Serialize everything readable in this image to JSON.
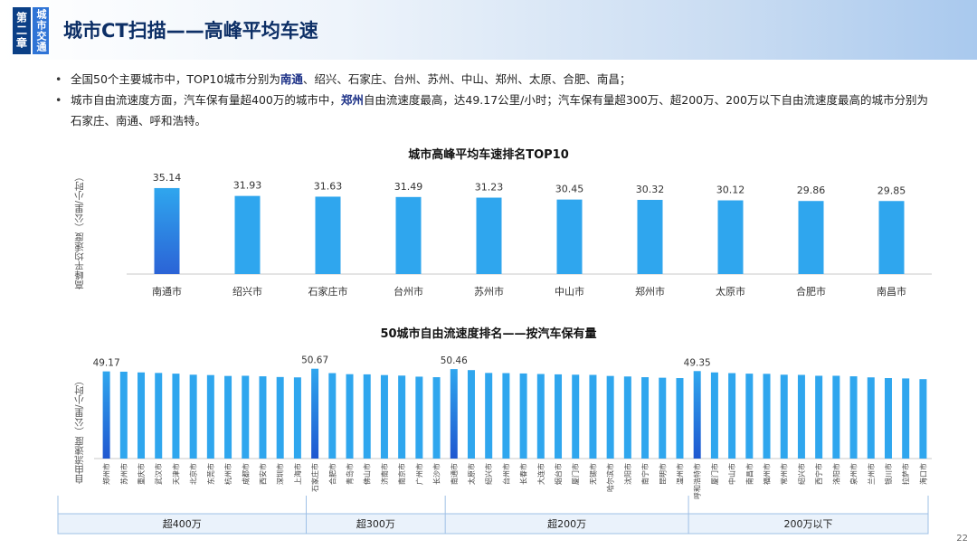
{
  "header": {
    "chapter_label": "第二章",
    "section_label": "城市交通",
    "title": "城市CT扫描——高峰平均车速"
  },
  "bullets": [
    {
      "pre": "全国50个主要城市中，TOP10城市分别为",
      "highlight": "南通",
      "post": "、绍兴、石家庄、台州、苏州、中山、郑州、太原、合肥、南昌；"
    },
    {
      "pre": "城市自由流速度方面，汽车保有量超400万的城市中，",
      "highlight": "郑州",
      "post": "自由流速度最高，达49.17公里/小时；汽车保有量超300万、超200万、200万以下自由流速度最高的城市分别为石家庄、南通、呼和浩特。"
    }
  ],
  "page_number": "22",
  "colors": {
    "bar": "#2fa6ee",
    "bar_highlight": "#1f76d8",
    "bar_gradient_bottom": "#2b63d6",
    "header_dark": "#0b3f86"
  },
  "chart_data": [
    {
      "type": "bar",
      "title": "城市高峰平均车速排名TOP10",
      "ylabel": "高峰平均速度（公里/小时）",
      "categories": [
        "南通市",
        "绍兴市",
        "石家庄市",
        "台州市",
        "苏州市",
        "中山市",
        "郑州市",
        "太原市",
        "合肥市",
        "南昌市"
      ],
      "values": [
        35.14,
        31.93,
        31.63,
        31.49,
        31.23,
        30.45,
        30.32,
        30.12,
        29.86,
        29.85
      ],
      "ylim": [
        0,
        40
      ],
      "data_labels": true,
      "highlight_index": 0
    },
    {
      "type": "bar",
      "title": "50城市自由流速度排名——按汽车保有量",
      "ylabel": "自由流速度（公里/小时）",
      "categories": [
        "郑州市",
        "苏州市",
        "重庆市",
        "武汉市",
        "天津市",
        "北京市",
        "东莞市",
        "杭州市",
        "成都市",
        "西安市",
        "深圳市",
        "上海市",
        "石家庄市",
        "合肥市",
        "青岛市",
        "佛山市",
        "济南市",
        "南京市",
        "广州市",
        "长沙市",
        "南通市",
        "太原市",
        "绍兴市",
        "台州市",
        "长春市",
        "大连市",
        "烟台市",
        "厦门市",
        "无锡市",
        "哈尔滨市",
        "沈阳市",
        "南宁市",
        "昆明市",
        "温州市",
        "呼和浩特市",
        "厦门市",
        "中山市",
        "南昌市",
        "福州市",
        "常州市",
        "绍兴市",
        "西宁市",
        "洛阳市",
        "泉州市",
        "兰州市",
        "银川市",
        "拉萨市",
        "海口市"
      ],
      "values": [
        49.17,
        49.0,
        48.6,
        48.3,
        47.9,
        47.3,
        47.1,
        46.6,
        46.7,
        46.4,
        46.0,
        45.8,
        50.67,
        48.2,
        47.6,
        47.5,
        47.1,
        46.8,
        46.2,
        45.9,
        50.46,
        49.9,
        48.3,
        48.2,
        48.0,
        47.7,
        47.5,
        47.3,
        47.2,
        46.6,
        46.3,
        45.9,
        45.6,
        45.4,
        49.35,
        48.6,
        48.2,
        47.9,
        47.8,
        47.3,
        47.2,
        46.7,
        46.7,
        46.4,
        45.8,
        45.4,
        45.2,
        44.8
      ],
      "ylim": [
        0,
        56
      ],
      "labeled_values": [
        {
          "index": 0,
          "label": "49.17"
        },
        {
          "index": 12,
          "label": "50.67"
        },
        {
          "index": 20,
          "label": "50.46"
        },
        {
          "index": 34,
          "label": "49.35"
        }
      ],
      "groups": [
        {
          "label": "超400万",
          "start": 0,
          "count": 12
        },
        {
          "label": "超300万",
          "start": 12,
          "count": 8
        },
        {
          "label": "超200万",
          "start": 20,
          "count": 14
        },
        {
          "label": "200万以下",
          "start": 34,
          "count": 14
        }
      ]
    }
  ]
}
